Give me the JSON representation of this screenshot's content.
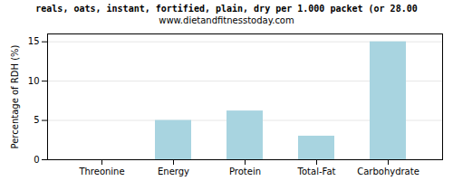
{
  "chart_data": {
    "type": "bar",
    "title": "reals, oats, instant, fortified, plain, dry per 1.000 packet (or 28.00",
    "subtitle": "www.dietandfitnesstoday.com",
    "categories": [
      "Threonine",
      "Energy",
      "Protein",
      "Total-Fat",
      "Carbohydrate"
    ],
    "values": [
      0,
      5.0,
      6.2,
      3.0,
      15.0
    ],
    "color": "#a8d4e0",
    "ylabel": "Percentage of RDH (%)",
    "ylim": [
      0,
      16
    ],
    "yticks": [
      0,
      5,
      10,
      15
    ],
    "grid": true
  }
}
